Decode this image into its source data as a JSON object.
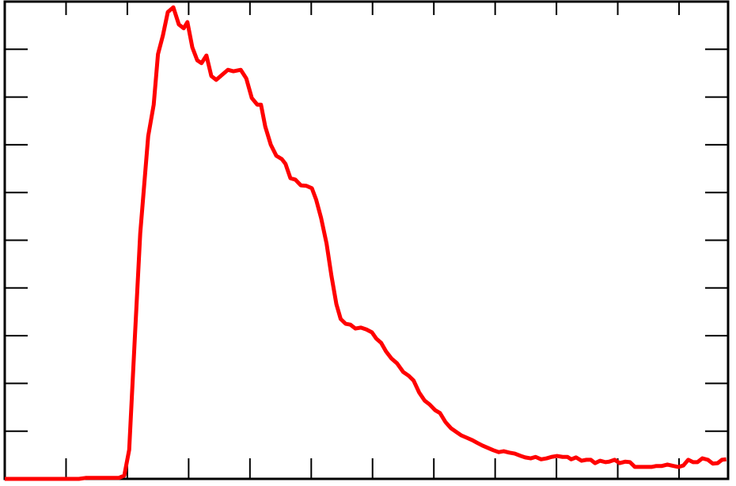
{
  "chart_data": {
    "type": "line",
    "x": [
      0,
      1.21,
      1.32,
      1.86,
      1.95,
      2.03,
      2.12,
      2.21,
      2.34,
      2.43,
      2.5,
      2.58,
      2.66,
      2.75,
      2.84,
      2.92,
      2.98,
      3.06,
      3.14,
      3.21,
      3.29,
      3.37,
      3.45,
      3.54,
      3.64,
      3.73,
      3.85,
      3.94,
      4.03,
      4.12,
      4.18,
      4.25,
      4.34,
      4.43,
      4.52,
      4.58,
      4.66,
      4.74,
      4.83,
      4.92,
      5.01,
      5.08,
      5.16,
      5.25,
      5.33,
      5.41,
      5.48,
      5.56,
      5.64,
      5.72,
      5.81,
      5.9,
      5.99,
      6.06,
      6.14,
      6.22,
      6.31,
      6.4,
      6.5,
      6.59,
      6.67,
      6.76,
      6.85,
      6.93,
      7.02,
      7.1,
      7.19,
      7.28,
      7.37,
      7.45,
      7.54,
      7.63,
      7.7,
      7.79,
      7.88,
      7.97,
      8.06,
      8.14,
      8.23,
      8.32,
      8.42,
      8.49,
      8.58,
      8.66,
      8.75,
      8.84,
      8.92,
      9.01,
      9.1,
      9.18,
      9.24,
      9.32,
      9.41,
      9.49,
      9.56,
      9.63,
      9.71,
      9.8,
      9.86,
      9.95,
      10.03,
      10.12,
      10.2,
      10.28,
      10.37,
      10.46,
      10.55,
      10.63,
      10.72,
      10.81,
      10.91,
      10.99,
      11.07,
      11.15,
      11.23,
      11.3,
      11.38,
      11.47,
      11.55,
      11.63,
      11.7,
      11.77
    ],
    "values": [
      0,
      0,
      0.02,
      0.02,
      0.07,
      0.61,
      2.9,
      5.14,
      7.18,
      7.84,
      8.9,
      9.29,
      9.78,
      9.88,
      9.52,
      9.44,
      9.57,
      9.04,
      8.77,
      8.71,
      8.87,
      8.44,
      8.36,
      8.46,
      8.57,
      8.54,
      8.57,
      8.39,
      7.98,
      7.84,
      7.84,
      7.38,
      7.0,
      6.77,
      6.7,
      6.6,
      6.3,
      6.27,
      6.15,
      6.14,
      6.09,
      5.85,
      5.47,
      4.93,
      4.25,
      3.66,
      3.35,
      3.25,
      3.23,
      3.15,
      3.17,
      3.13,
      3.07,
      2.94,
      2.85,
      2.67,
      2.52,
      2.42,
      2.24,
      2.16,
      2.06,
      1.81,
      1.64,
      1.56,
      1.44,
      1.38,
      1.19,
      1.06,
      0.98,
      0.91,
      0.86,
      0.81,
      0.76,
      0.7,
      0.65,
      0.6,
      0.56,
      0.58,
      0.55,
      0.53,
      0.48,
      0.45,
      0.43,
      0.46,
      0.41,
      0.43,
      0.46,
      0.48,
      0.46,
      0.46,
      0.41,
      0.45,
      0.38,
      0.4,
      0.4,
      0.33,
      0.38,
      0.35,
      0.36,
      0.4,
      0.33,
      0.36,
      0.35,
      0.25,
      0.25,
      0.25,
      0.25,
      0.27,
      0.27,
      0.3,
      0.27,
      0.25,
      0.28,
      0.4,
      0.35,
      0.35,
      0.43,
      0.4,
      0.32,
      0.33,
      0.4,
      0.41
    ],
    "color": "#ff0000",
    "xlim": [
      0,
      11.8
    ],
    "xticks": [
      1,
      2,
      3,
      4,
      5,
      6,
      7,
      8,
      9,
      10,
      11
    ],
    "ylim": [
      0,
      10
    ],
    "yticks": [
      1,
      2,
      3,
      4,
      5,
      6,
      7,
      8,
      9
    ]
  }
}
